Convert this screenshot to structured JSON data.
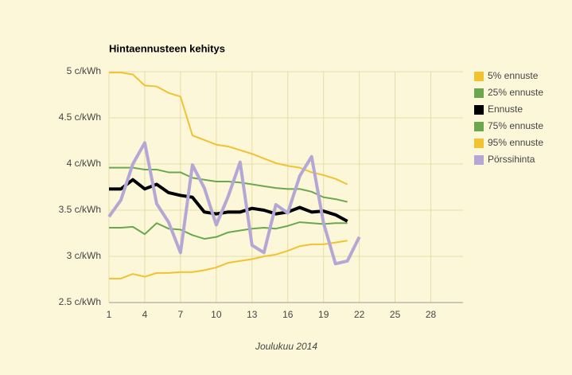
{
  "chart_data": {
    "type": "line",
    "title": "Hintaennusteen kehitys",
    "x_label": "Joulukuu 2014",
    "x": [
      1,
      2,
      3,
      4,
      5,
      6,
      7,
      8,
      9,
      10,
      11,
      12,
      13,
      14,
      15,
      16,
      17,
      18,
      19,
      20,
      21,
      22
    ],
    "series": [
      {
        "name": "5% ennuste",
        "color": "#f1c232",
        "width": 2,
        "values": [
          4.99,
          4.99,
          4.97,
          4.85,
          4.84,
          4.77,
          4.73,
          4.31,
          4.26,
          4.21,
          4.19,
          4.15,
          4.11,
          4.06,
          4.01,
          3.98,
          3.96,
          3.91,
          3.88,
          3.84,
          3.78,
          null
        ]
      },
      {
        "name": "25% ennuste",
        "color": "#6aa84f",
        "width": 2,
        "values": [
          3.96,
          3.96,
          3.96,
          3.94,
          3.94,
          3.91,
          3.91,
          3.85,
          3.83,
          3.81,
          3.81,
          3.8,
          3.78,
          3.76,
          3.74,
          3.73,
          3.73,
          3.7,
          3.64,
          3.62,
          3.59,
          null
        ]
      },
      {
        "name": "Ennuste",
        "color": "#000000",
        "width": 4,
        "values": [
          3.73,
          3.73,
          3.83,
          3.73,
          3.78,
          3.69,
          3.66,
          3.64,
          3.48,
          3.46,
          3.48,
          3.48,
          3.52,
          3.5,
          3.46,
          3.48,
          3.53,
          3.48,
          3.49,
          3.45,
          3.38,
          null
        ]
      },
      {
        "name": "75% ennuste",
        "color": "#6aa84f",
        "width": 2,
        "values": [
          3.31,
          3.31,
          3.32,
          3.24,
          3.36,
          3.3,
          3.29,
          3.23,
          3.19,
          3.21,
          3.26,
          3.28,
          3.3,
          3.31,
          3.3,
          3.33,
          3.37,
          3.36,
          3.35,
          3.36,
          3.36,
          null
        ]
      },
      {
        "name": "95% ennuste",
        "color": "#f1c232",
        "width": 2,
        "values": [
          2.76,
          2.76,
          2.81,
          2.78,
          2.82,
          2.82,
          2.83,
          2.83,
          2.85,
          2.88,
          2.93,
          2.95,
          2.97,
          3.0,
          3.02,
          3.06,
          3.11,
          3.13,
          3.13,
          3.15,
          3.17,
          null
        ]
      },
      {
        "name": "Pörssihinta",
        "color": "#b4a7d6",
        "width": 4,
        "values": [
          3.43,
          3.61,
          4.0,
          4.23,
          3.57,
          3.37,
          3.04,
          3.99,
          3.74,
          3.34,
          3.65,
          4.02,
          3.12,
          3.04,
          3.56,
          3.47,
          3.87,
          4.08,
          3.36,
          2.92,
          2.95,
          3.21
        ]
      }
    ],
    "xlim": [
      1,
      30.7
    ],
    "xticks": [
      1,
      4,
      7,
      10,
      13,
      16,
      19,
      22,
      25,
      28
    ],
    "ylim": [
      2.5,
      5
    ],
    "yticks": [
      {
        "value": 2.5,
        "label": "2.5 c/kWh"
      },
      {
        "value": 3,
        "label": "3 c/kWh"
      },
      {
        "value": 3.5,
        "label": "3.5 c/kWh"
      },
      {
        "value": 4,
        "label": "4 c/kWh"
      },
      {
        "value": 4.5,
        "label": "4.5 c/kWh"
      },
      {
        "value": 5,
        "label": "5 c/kWh"
      }
    ],
    "grid": true
  }
}
